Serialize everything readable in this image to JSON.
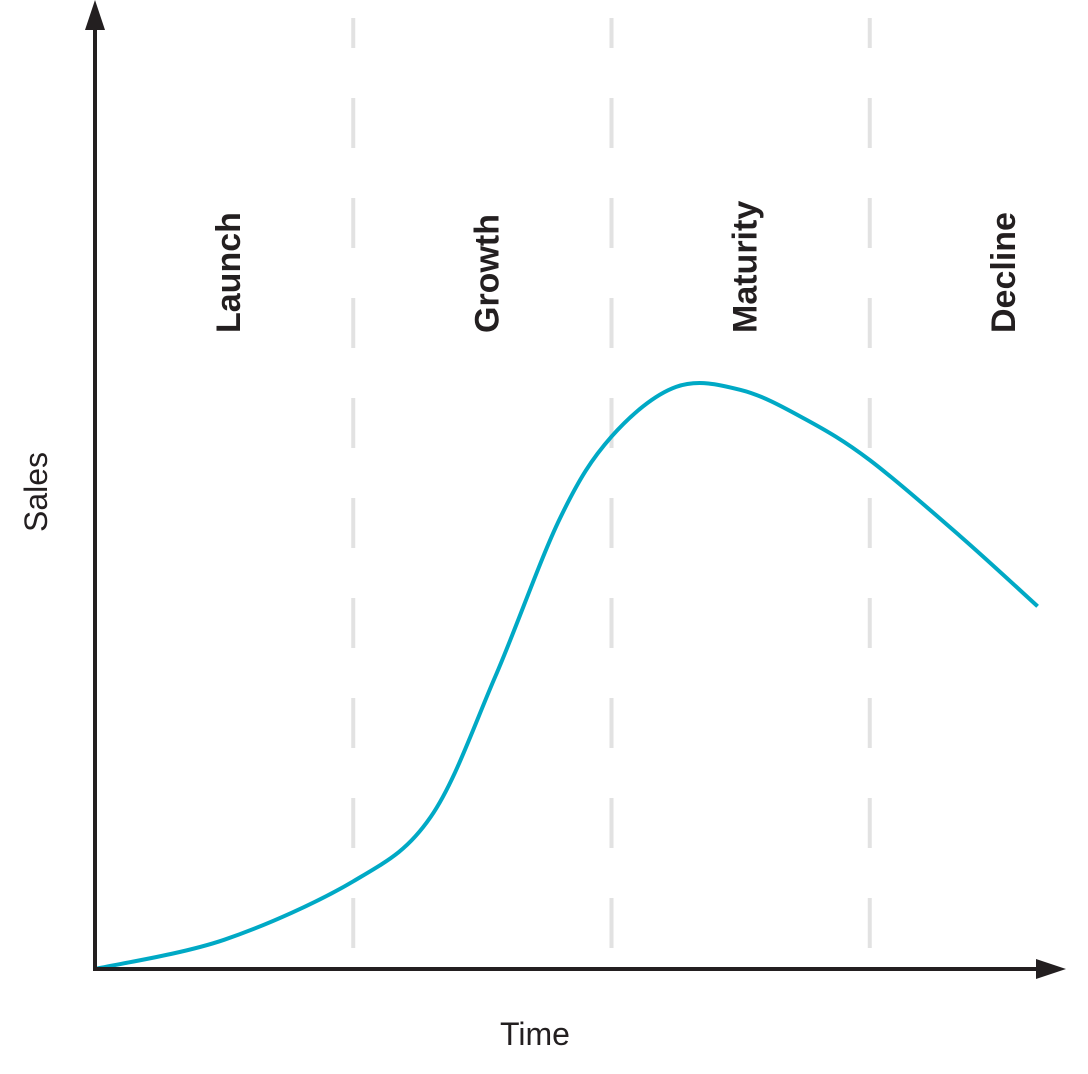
{
  "chart_data": {
    "type": "line",
    "xlabel": "Time",
    "ylabel": "Sales",
    "xlim": [
      0,
      4
    ],
    "ylim": [
      0,
      100
    ],
    "grid": false,
    "stages": [
      "Launch",
      "Growth",
      "Maturity",
      "Decline"
    ],
    "stage_boundaries": [
      1,
      2,
      3
    ],
    "series": [
      {
        "x": [
          0,
          0.5,
          1,
          1.3,
          1.55,
          1.8,
          2.0,
          2.25,
          2.5,
          2.75,
          3.0,
          3.35,
          3.65
        ],
        "y": [
          0,
          5,
          15,
          26,
          50,
          77,
          91,
          99.5,
          99,
          94,
          87,
          74,
          62
        ]
      }
    ],
    "colors": {
      "curve": "#00a9c5",
      "axes": "#231f20",
      "dividers": "#e2e2e2"
    }
  }
}
